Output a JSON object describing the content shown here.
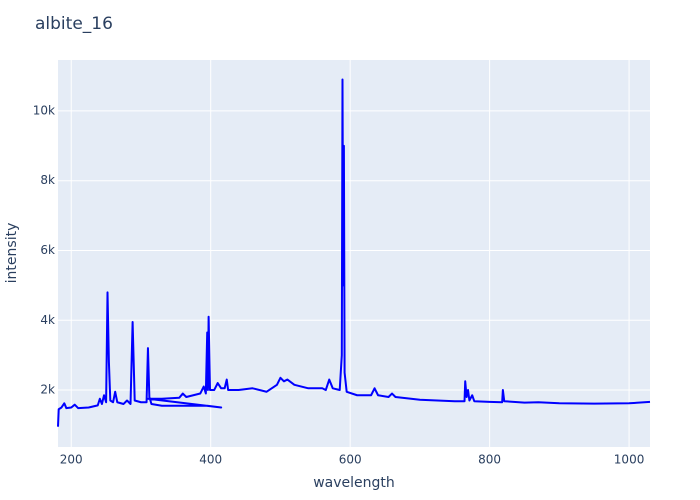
{
  "chart_data": {
    "type": "line",
    "title": "albite_16",
    "x_label": "wavelength",
    "y_label": "intensity",
    "color": "#0000ff",
    "grid": true,
    "xlim": [
      181,
      1030
    ],
    "ylim": [
      367,
      11460
    ],
    "xticks": [
      200,
      400,
      600,
      800,
      1000
    ],
    "yticks": [
      {
        "value": 2000,
        "label": "2k"
      },
      {
        "value": 4000,
        "label": "4k"
      },
      {
        "value": 6000,
        "label": "6k"
      },
      {
        "value": 8000,
        "label": "8k"
      },
      {
        "value": 10000,
        "label": "10k"
      }
    ],
    "x": [
      181,
      182,
      186,
      190,
      193,
      200,
      205,
      210,
      225,
      238,
      241,
      244,
      247,
      250,
      252,
      254,
      256,
      260,
      263,
      266,
      275,
      280,
      285,
      288,
      291,
      300,
      308,
      310,
      312,
      315,
      330,
      350,
      380,
      395,
      415,
      310,
      330,
      355,
      360,
      365,
      385,
      390,
      393,
      395,
      396,
      397,
      399,
      405,
      410,
      415,
      420,
      423,
      425,
      440,
      460,
      480,
      495,
      500,
      505,
      510,
      520,
      540,
      560,
      565,
      570,
      575,
      585,
      588,
      589,
      590,
      591,
      592,
      595,
      610,
      630,
      635,
      640,
      655,
      660,
      665,
      700,
      750,
      764,
      765,
      767,
      769,
      771,
      775,
      778,
      800,
      818,
      819,
      821,
      850,
      870,
      900,
      950,
      1000,
      1030
    ],
    "values": [
      950,
      1450,
      1500,
      1620,
      1480,
      1500,
      1580,
      1480,
      1500,
      1560,
      1750,
      1600,
      1850,
      1650,
      4800,
      2800,
      1700,
      1650,
      1950,
      1650,
      1600,
      1700,
      1600,
      3950,
      1700,
      1650,
      1650,
      3200,
      1800,
      1600,
      1550,
      1550,
      1550,
      1550,
      1500,
      1750,
      1750,
      1780,
      1900,
      1800,
      1900,
      2100,
      1900,
      3650,
      2000,
      4100,
      2000,
      2000,
      2200,
      2050,
      2050,
      2300,
      2000,
      2000,
      2050,
      1950,
      2150,
      2350,
      2250,
      2300,
      2150,
      2050,
      2050,
      2000,
      2300,
      2050,
      2000,
      3000,
      10900,
      5000,
      9000,
      2500,
      1950,
      1850,
      1850,
      2050,
      1850,
      1800,
      1900,
      1800,
      1720,
      1680,
      1680,
      2250,
      1800,
      2000,
      1700,
      1850,
      1680,
      1660,
      1650,
      2000,
      1680,
      1640,
      1650,
      1620,
      1610,
      1620,
      1660
    ]
  }
}
